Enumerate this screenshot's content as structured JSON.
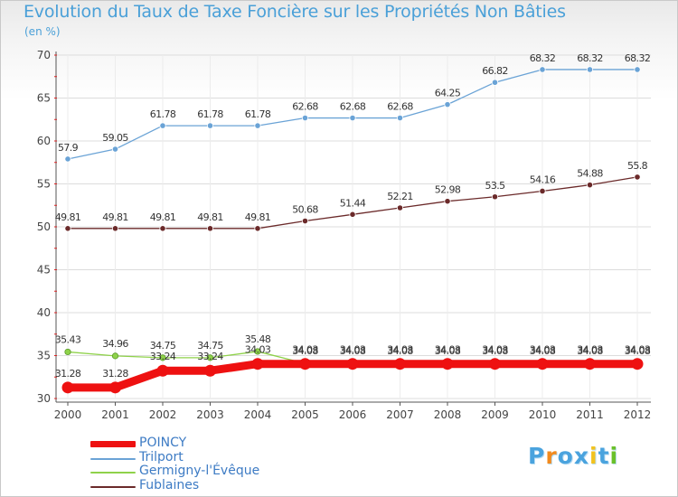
{
  "chart_data": {
    "type": "line",
    "title": "Evolution du Taux de Taxe Foncière sur les Propriétés Non Bâties",
    "unit": "(en %)",
    "xlabel": "",
    "ylabel": "",
    "ylim": [
      30,
      70
    ],
    "yticks": [
      "30",
      "35",
      "40",
      "45",
      "50",
      "55",
      "60",
      "65",
      "70"
    ],
    "categories": [
      "2000",
      "2001",
      "2002",
      "2003",
      "2004",
      "2005",
      "2006",
      "2007",
      "2008",
      "2009",
      "2010",
      "2011",
      "2012"
    ],
    "series": [
      {
        "name": "Trilport",
        "color": "#6aa3d6",
        "values": [
          57.9,
          59.05,
          61.78,
          61.78,
          61.78,
          62.68,
          62.68,
          62.68,
          64.25,
          66.82,
          68.32,
          68.32,
          68.32
        ],
        "labels": [
          "57.9",
          "59.05",
          "61.78",
          "61.78",
          "61.78",
          "62.68",
          "62.68",
          "62.68",
          "64.25",
          "66.82",
          "68.32",
          "68.32",
          "68.32"
        ]
      },
      {
        "name": "Fublaines",
        "color": "#6b2a2a",
        "values": [
          49.81,
          49.81,
          49.81,
          49.81,
          49.81,
          50.68,
          51.44,
          52.21,
          52.98,
          53.5,
          54.16,
          54.88,
          55.8
        ],
        "labels": [
          "49.81",
          "49.81",
          "49.81",
          "49.81",
          "49.81",
          "50.68",
          "51.44",
          "52.21",
          "52.98",
          "53.5",
          "54.16",
          "54.88",
          "55.8"
        ]
      },
      {
        "name": "Germigny-l'Évêque",
        "color": "#8fd24a",
        "values": [
          35.43,
          34.96,
          34.75,
          34.75,
          35.48,
          34.08,
          34.08,
          34.08,
          34.08,
          34.08,
          34.08,
          34.08,
          34.08
        ],
        "labels": [
          "35.43",
          "34.96",
          "34.75",
          "34.75",
          "35.48",
          "34.08",
          "34.08",
          "34.08",
          "34.08",
          "34.08",
          "34.08",
          "34.08",
          "34.08"
        ]
      },
      {
        "name": "POINCY",
        "color": "#ee1111",
        "values": [
          31.28,
          31.28,
          33.24,
          33.24,
          34.03,
          34.03,
          34.03,
          34.03,
          34.03,
          34.03,
          34.03,
          34.03,
          34.03
        ],
        "labels": [
          "31.28",
          "31.28",
          "33.24",
          "33.24",
          "34.03",
          "34.03",
          "34.03",
          "34.03",
          "34.03",
          "34.03",
          "34.03",
          "34.03",
          "34.03"
        ]
      }
    ],
    "legend": [
      {
        "name": "POINCY",
        "color": "#ee1111"
      },
      {
        "name": "Trilport",
        "color": "#6aa3d6"
      },
      {
        "name": "Germigny-l'Évêque",
        "color": "#8fd24a"
      },
      {
        "name": "Fublaines",
        "color": "#6b2a2a"
      }
    ],
    "legend_position": "bottom-left"
  },
  "logo": {
    "text": "Proxiti"
  }
}
